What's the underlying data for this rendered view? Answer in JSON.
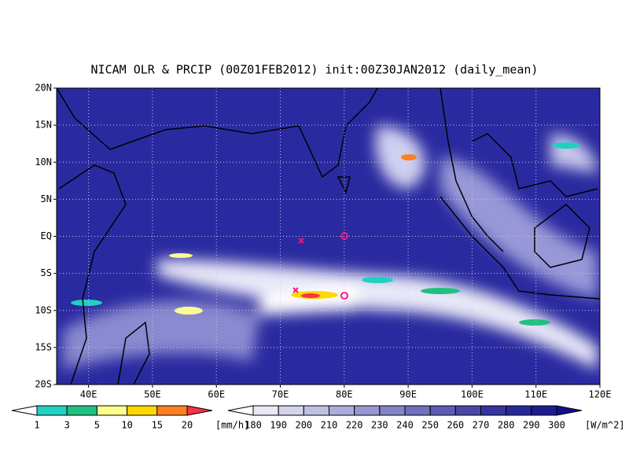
{
  "title": "NICAM OLR & PRCIP (00Z01FEB2012) init:00Z30JAN2012 (daily_mean)",
  "lat_labels": [
    "20N",
    "15N",
    "10N",
    "5N",
    "EQ",
    "5S",
    "10S",
    "15S",
    "20S"
  ],
  "lon_labels": [
    "40E",
    "50E",
    "60E",
    "70E",
    "80E",
    "90E",
    "100E",
    "110E",
    "120E"
  ],
  "precip_colorbar": {
    "labels": [
      "1",
      "3",
      "5",
      "10",
      "15",
      "20"
    ],
    "unit": "[mm/h]",
    "colors": [
      "#ffffff",
      "#20d0c0",
      "#20c080",
      "#ffff90",
      "#ffd800",
      "#ff8020",
      "#ff3040"
    ]
  },
  "olr_colorbar": {
    "labels": [
      "180",
      "190",
      "200",
      "210",
      "220",
      "230",
      "240",
      "250",
      "260",
      "270",
      "280",
      "290",
      "300"
    ],
    "unit": "[W/m^2]",
    "colors": [
      "#ffffff",
      "#e8e8f4",
      "#d4d4ec",
      "#c0c0e4",
      "#acacdc",
      "#9898d0",
      "#8484c8",
      "#7070bc",
      "#5c5cb4",
      "#4848a8",
      "#3434a0",
      "#28289a",
      "#1c1c90",
      "#10108a"
    ]
  }
}
